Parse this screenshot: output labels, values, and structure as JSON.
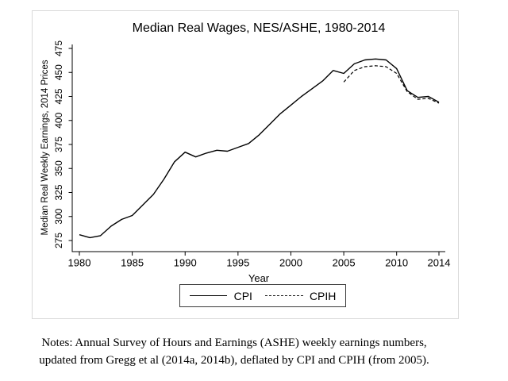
{
  "colors": {
    "line": "#000000",
    "axis": "#000000",
    "text": "#000000",
    "figure_border": "#d9d9d9",
    "background": "#ffffff"
  },
  "chart_data": {
    "type": "line",
    "title": "Median Real Wages, NES/ASHE, 1980-2014",
    "xlabel": "Year",
    "ylabel": "Median Real Weekly Earnings, 2014 Prices",
    "xlim": [
      1980,
      2014
    ],
    "ylim": [
      275,
      475
    ],
    "x_ticks": [
      1980,
      1985,
      1990,
      1995,
      2000,
      2005,
      2010,
      2014
    ],
    "y_ticks": [
      275,
      300,
      325,
      350,
      375,
      400,
      425,
      450,
      475
    ],
    "grid": false,
    "legend_position": "bottom-center",
    "series": [
      {
        "name": "CPI",
        "style": "solid",
        "x": [
          1980,
          1981,
          1982,
          1983,
          1984,
          1985,
          1986,
          1987,
          1988,
          1989,
          1990,
          1991,
          1992,
          1993,
          1994,
          1995,
          1996,
          1997,
          1998,
          1999,
          2000,
          2001,
          2002,
          2003,
          2004,
          2005,
          2006,
          2007,
          2008,
          2009,
          2010,
          2011,
          2012,
          2013,
          2014
        ],
        "values": [
          281,
          278,
          280,
          290,
          297,
          301,
          312,
          323,
          339,
          357,
          367,
          362,
          366,
          369,
          368,
          372,
          376,
          385,
          396,
          407,
          416,
          425,
          433,
          441,
          452,
          449,
          459,
          463,
          464,
          463,
          454,
          431,
          424,
          425,
          419
        ]
      },
      {
        "name": "CPIH",
        "style": "dashed",
        "x": [
          2005,
          2006,
          2007,
          2008,
          2009,
          2010,
          2011,
          2012,
          2013,
          2014
        ],
        "values": [
          440,
          452,
          456,
          457,
          456,
          449,
          430,
          422,
          423,
          418
        ]
      }
    ]
  },
  "notes": {
    "line1": "Notes: Annual Survey of Hours and Earnings (ASHE) weekly earnings numbers,",
    "line2": "updated from Gregg et al (2014a, 2014b), deflated by CPI and CPIH (from 2005)."
  }
}
